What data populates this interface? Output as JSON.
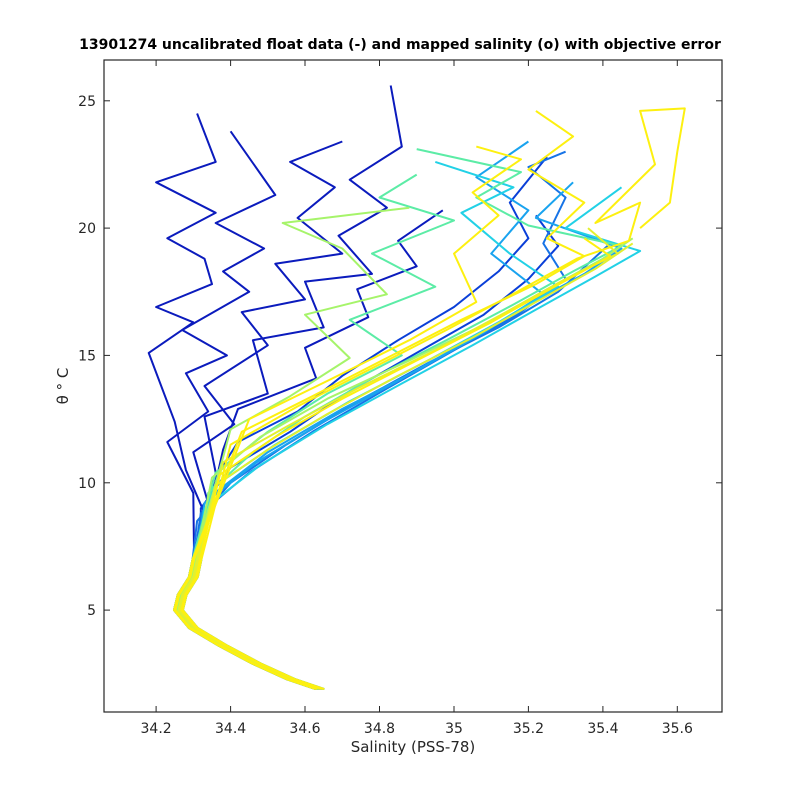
{
  "chart_data": {
    "type": "line",
    "title": "13901274 uncalibrated float data (-) and mapped salinity (o) with objective error",
    "xlabel": "Salinity (PSS-78)",
    "ylabel": "θ ° C",
    "xlim": [
      34.06,
      35.72
    ],
    "ylim": [
      1.0,
      26.6
    ],
    "xticks": [
      "34.2",
      "34.4",
      "34.6",
      "34.8",
      "35",
      "35.2",
      "35.4",
      "35.6"
    ],
    "xtick_values": [
      34.2,
      34.4,
      34.6,
      34.8,
      35.0,
      35.2,
      35.4,
      35.6
    ],
    "yticks": [
      "5",
      "10",
      "15",
      "20",
      "25"
    ],
    "ytick_values": [
      5,
      10,
      15,
      20,
      25
    ],
    "grid": false,
    "colormap": [
      "#0b1bbd",
      "#0a3fd8",
      "#1673e6",
      "#19a3ef",
      "#22d1e6",
      "#5ceca6",
      "#a6f46a",
      "#e3f02f",
      "#fdf010"
    ],
    "common_deep_profile": [
      [
        34.64,
        1.9
      ],
      [
        34.56,
        2.3
      ],
      [
        34.47,
        2.9
      ],
      [
        34.38,
        3.6
      ],
      [
        34.3,
        4.3
      ],
      [
        34.26,
        5.0
      ],
      [
        34.27,
        5.6
      ],
      [
        34.3,
        6.3
      ],
      [
        34.31,
        7.0
      ]
    ],
    "series": [
      {
        "color": "#0b1bbd",
        "points": [
          [
            34.33,
            8.8
          ],
          [
            34.28,
            10.5
          ],
          [
            34.25,
            12.4
          ],
          [
            34.18,
            15.1
          ],
          [
            34.3,
            16.3
          ],
          [
            34.2,
            16.9
          ],
          [
            34.35,
            17.8
          ],
          [
            34.33,
            18.8
          ],
          [
            34.23,
            19.6
          ],
          [
            34.36,
            20.6
          ],
          [
            34.2,
            21.8
          ],
          [
            34.36,
            22.6
          ],
          [
            34.31,
            24.5
          ]
        ]
      },
      {
        "color": "#0b1bbd",
        "points": [
          [
            34.3,
            9.6
          ],
          [
            34.23,
            11.6
          ],
          [
            34.34,
            12.8
          ],
          [
            34.28,
            14.3
          ],
          [
            34.39,
            15.0
          ],
          [
            34.27,
            16.0
          ],
          [
            34.45,
            17.5
          ],
          [
            34.38,
            18.3
          ],
          [
            34.49,
            19.2
          ],
          [
            34.36,
            20.2
          ],
          [
            34.52,
            21.3
          ],
          [
            34.4,
            23.8
          ]
        ]
      },
      {
        "color": "#0b1bbd",
        "points": [
          [
            34.34,
            9.2
          ],
          [
            34.3,
            11.2
          ],
          [
            34.41,
            12.3
          ],
          [
            34.33,
            13.8
          ],
          [
            34.5,
            15.4
          ],
          [
            34.43,
            16.7
          ],
          [
            34.6,
            17.2
          ],
          [
            34.52,
            18.6
          ],
          [
            34.7,
            19.0
          ],
          [
            34.58,
            20.4
          ],
          [
            34.68,
            21.6
          ],
          [
            34.56,
            22.6
          ],
          [
            34.7,
            23.4
          ]
        ]
      },
      {
        "color": "#0b1bbd",
        "points": [
          [
            34.36,
            10.4
          ],
          [
            34.33,
            12.6
          ],
          [
            34.5,
            13.5
          ],
          [
            34.46,
            15.6
          ],
          [
            34.65,
            16.1
          ],
          [
            34.6,
            17.9
          ],
          [
            34.78,
            18.2
          ],
          [
            34.69,
            19.7
          ],
          [
            34.82,
            20.8
          ],
          [
            34.72,
            21.9
          ],
          [
            34.86,
            23.2
          ],
          [
            34.83,
            25.6
          ]
        ]
      },
      {
        "color": "#0b1bbd",
        "points": [
          [
            34.38,
            11.3
          ],
          [
            34.42,
            12.9
          ],
          [
            34.63,
            14.1
          ],
          [
            34.6,
            15.3
          ],
          [
            34.77,
            16.5
          ],
          [
            34.74,
            17.6
          ],
          [
            34.9,
            18.5
          ],
          [
            34.85,
            19.5
          ],
          [
            34.97,
            20.7
          ]
        ]
      },
      {
        "color": "#0a3fd8",
        "points": [
          [
            34.35,
            10.0
          ],
          [
            34.42,
            11.6
          ],
          [
            34.58,
            12.8
          ],
          [
            34.7,
            14.2
          ],
          [
            34.85,
            15.6
          ],
          [
            35.0,
            16.9
          ],
          [
            35.12,
            18.3
          ],
          [
            35.2,
            19.6
          ],
          [
            35.15,
            21.0
          ],
          [
            35.25,
            22.8
          ]
        ]
      },
      {
        "color": "#0a3fd8",
        "points": [
          [
            34.32,
            9.0
          ],
          [
            34.4,
            10.6
          ],
          [
            34.56,
            12.0
          ],
          [
            34.72,
            13.6
          ],
          [
            34.9,
            15.1
          ],
          [
            35.08,
            16.6
          ],
          [
            35.2,
            18.0
          ],
          [
            35.28,
            19.3
          ],
          [
            35.22,
            20.5
          ]
        ]
      },
      {
        "color": "#1673e6",
        "points": [
          [
            34.31,
            8.5
          ],
          [
            34.4,
            10.0
          ],
          [
            34.55,
            11.5
          ],
          [
            34.73,
            13.1
          ],
          [
            34.93,
            14.7
          ],
          [
            35.12,
            16.1
          ],
          [
            35.28,
            17.5
          ],
          [
            35.36,
            18.6
          ],
          [
            35.42,
            19.4
          ]
        ]
      },
      {
        "color": "#1673e6",
        "points": [
          [
            34.32,
            8.8
          ],
          [
            34.45,
            10.4
          ],
          [
            34.62,
            12.0
          ],
          [
            34.82,
            13.7
          ],
          [
            35.0,
            15.2
          ],
          [
            35.17,
            16.6
          ],
          [
            35.3,
            18.0
          ],
          [
            35.24,
            19.4
          ],
          [
            35.3,
            21.2
          ],
          [
            35.2,
            22.4
          ],
          [
            35.3,
            23.0
          ]
        ]
      },
      {
        "color": "#19a3ef",
        "points": [
          [
            34.33,
            9.2
          ],
          [
            34.47,
            10.8
          ],
          [
            34.65,
            12.4
          ],
          [
            34.85,
            14.0
          ],
          [
            35.04,
            15.6
          ],
          [
            35.2,
            17.0
          ],
          [
            35.35,
            18.2
          ],
          [
            35.45,
            19.2
          ],
          [
            35.22,
            20.4
          ],
          [
            35.32,
            21.8
          ]
        ]
      },
      {
        "color": "#19a3ef",
        "points": [
          [
            34.34,
            9.4
          ],
          [
            34.5,
            11.2
          ],
          [
            34.7,
            12.9
          ],
          [
            34.9,
            14.4
          ],
          [
            35.08,
            15.9
          ],
          [
            35.24,
            17.4
          ],
          [
            35.1,
            19.0
          ],
          [
            35.2,
            20.7
          ],
          [
            35.06,
            22.0
          ],
          [
            35.2,
            23.4
          ]
        ]
      },
      {
        "color": "#22d1e6",
        "points": [
          [
            34.33,
            9.0
          ],
          [
            34.48,
            10.7
          ],
          [
            34.66,
            12.3
          ],
          [
            34.86,
            13.9
          ],
          [
            35.05,
            15.4
          ],
          [
            35.22,
            16.8
          ],
          [
            35.38,
            18.1
          ],
          [
            35.5,
            19.1
          ],
          [
            35.3,
            20.0
          ],
          [
            35.45,
            21.6
          ]
        ]
      },
      {
        "color": "#22d1e6",
        "points": [
          [
            34.35,
            9.8
          ],
          [
            34.52,
            11.5
          ],
          [
            34.72,
            13.2
          ],
          [
            34.93,
            14.8
          ],
          [
            35.12,
            16.3
          ],
          [
            35.28,
            17.7
          ],
          [
            35.15,
            19.0
          ],
          [
            35.02,
            20.6
          ],
          [
            35.16,
            21.6
          ],
          [
            34.95,
            22.6
          ]
        ]
      },
      {
        "color": "#5ceca6",
        "points": [
          [
            34.34,
            9.6
          ],
          [
            34.46,
            11.2
          ],
          [
            34.6,
            12.6
          ],
          [
            34.78,
            14.1
          ],
          [
            34.98,
            15.6
          ],
          [
            35.16,
            17.0
          ],
          [
            35.32,
            18.3
          ],
          [
            35.45,
            19.3
          ],
          [
            35.2,
            20.1
          ],
          [
            35.06,
            21.2
          ],
          [
            35.18,
            22.2
          ],
          [
            34.9,
            23.1
          ]
        ]
      },
      {
        "color": "#5ceca6",
        "points": [
          [
            34.36,
            10.4
          ],
          [
            34.5,
            12.0
          ],
          [
            34.66,
            13.5
          ],
          [
            34.86,
            15.0
          ],
          [
            34.72,
            16.4
          ],
          [
            34.95,
            17.7
          ],
          [
            34.78,
            19.0
          ],
          [
            35.0,
            20.3
          ],
          [
            34.8,
            21.2
          ],
          [
            34.9,
            22.1
          ]
        ]
      },
      {
        "color": "#a6f46a",
        "points": [
          [
            34.38,
            11.0
          ],
          [
            34.4,
            12.1
          ],
          [
            34.56,
            13.4
          ],
          [
            34.72,
            14.9
          ],
          [
            34.6,
            16.6
          ],
          [
            34.82,
            17.4
          ],
          [
            34.7,
            19.2
          ],
          [
            34.54,
            20.2
          ],
          [
            34.88,
            20.8
          ]
        ]
      },
      {
        "color": "#a6f46a",
        "points": [
          [
            34.35,
            10.2
          ],
          [
            34.48,
            11.8
          ],
          [
            34.66,
            13.3
          ],
          [
            34.88,
            14.8
          ],
          [
            35.08,
            16.2
          ],
          [
            35.25,
            17.6
          ],
          [
            35.4,
            18.8
          ],
          [
            35.48,
            19.6
          ]
        ]
      },
      {
        "color": "#e3f02f",
        "points": [
          [
            34.36,
            9.9
          ],
          [
            34.5,
            11.3
          ],
          [
            34.66,
            12.7
          ],
          [
            34.85,
            14.2
          ],
          [
            35.05,
            15.7
          ],
          [
            35.22,
            17.1
          ],
          [
            35.38,
            18.4
          ],
          [
            35.48,
            19.4
          ]
        ]
      },
      {
        "color": "#e3f02f",
        "points": [
          [
            34.38,
            10.8
          ],
          [
            34.55,
            12.2
          ],
          [
            34.74,
            13.7
          ],
          [
            34.95,
            15.2
          ],
          [
            35.14,
            16.7
          ],
          [
            35.3,
            18.0
          ],
          [
            35.44,
            19.0
          ],
          [
            35.36,
            20.0
          ]
        ]
      },
      {
        "color": "#fdf010",
        "points": [
          [
            34.37,
            10.3
          ],
          [
            34.52,
            11.8
          ],
          [
            34.7,
            13.3
          ],
          [
            34.9,
            14.8
          ],
          [
            35.1,
            16.3
          ],
          [
            35.27,
            17.7
          ],
          [
            35.42,
            18.9
          ],
          [
            35.35,
            19.6
          ]
        ]
      },
      {
        "color": "#fdf010",
        "points": [
          [
            34.4,
            11.5
          ],
          [
            34.58,
            13.0
          ],
          [
            34.78,
            14.5
          ],
          [
            34.98,
            16.0
          ],
          [
            35.17,
            17.5
          ],
          [
            35.33,
            18.8
          ],
          [
            35.47,
            19.5
          ],
          [
            35.5,
            21.0
          ],
          [
            35.38,
            20.2
          ],
          [
            35.54,
            22.5
          ],
          [
            35.5,
            24.6
          ],
          [
            35.62,
            24.7
          ],
          [
            35.6,
            23.0
          ],
          [
            35.58,
            21.0
          ],
          [
            35.5,
            20.0
          ]
        ]
      },
      {
        "color": "#fdf010",
        "points": [
          [
            34.43,
            12.0
          ],
          [
            34.62,
            13.4
          ],
          [
            34.82,
            14.9
          ],
          [
            35.02,
            16.4
          ],
          [
            35.22,
            17.8
          ],
          [
            35.35,
            18.9
          ],
          [
            35.25,
            19.6
          ],
          [
            35.35,
            21.0
          ],
          [
            35.2,
            22.3
          ],
          [
            35.32,
            23.6
          ],
          [
            35.22,
            24.6
          ]
        ]
      },
      {
        "color": "#fdf010",
        "points": [
          [
            34.45,
            12.5
          ],
          [
            34.66,
            14.0
          ],
          [
            34.88,
            15.6
          ],
          [
            35.06,
            17.1
          ],
          [
            35.0,
            19.0
          ],
          [
            35.12,
            20.5
          ],
          [
            35.05,
            21.4
          ],
          [
            35.18,
            22.7
          ],
          [
            35.06,
            23.2
          ]
        ]
      }
    ]
  }
}
